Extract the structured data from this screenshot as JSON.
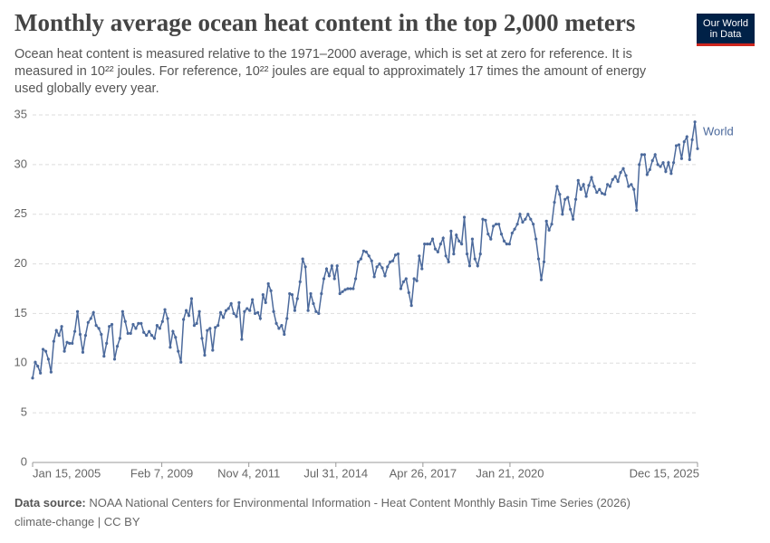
{
  "chart_data": {
    "type": "line",
    "title": "Monthly average ocean heat content in the top 2,000 meters",
    "subtitle": "Ocean heat content is measured relative to the 1971–2000 average, which is set at zero for reference. It is measured in 10²² joules. For reference, 10²² joules are equal to approximately 17 times the amount of energy used globally every year.",
    "logo": "Our World in Data",
    "source_label": "Data source:",
    "source": "NOAA National Centers for Environmental Information - Heat Content Monthly Basin Time Series (2026)",
    "footer": "climate-change | CC BY",
    "grid": true,
    "ylim": [
      0,
      35
    ],
    "yticks": [
      0,
      5,
      10,
      15,
      20,
      25,
      30,
      35
    ],
    "xlim": [
      "2005-01-15",
      "2025-12-15"
    ],
    "xticks": [
      {
        "value": "2005-01-15",
        "label": "Jan 15, 2005"
      },
      {
        "value": "2009-02-07",
        "label": "Feb 7, 2009"
      },
      {
        "value": "2011-11-04",
        "label": "Nov 4, 2011"
      },
      {
        "value": "2014-07-31",
        "label": "Jul 31, 2014"
      },
      {
        "value": "2017-04-26",
        "label": "Apr 26, 2017"
      },
      {
        "value": "2020-01-21",
        "label": "Jan 21, 2020"
      },
      {
        "value": "2025-12-15",
        "label": "Dec 15, 2025"
      }
    ],
    "x": [
      "2005-01-15",
      "2005-02-15",
      "2005-03-15",
      "2005-04-15",
      "2005-05-15",
      "2005-06-15",
      "2005-07-15",
      "2005-08-15",
      "2005-09-15",
      "2005-10-15",
      "2005-11-15",
      "2005-12-15",
      "2006-01-15",
      "2006-02-15",
      "2006-03-15",
      "2006-04-15",
      "2006-05-15",
      "2006-06-15",
      "2006-07-15",
      "2006-08-15",
      "2006-09-15",
      "2006-10-15",
      "2006-11-15",
      "2006-12-15",
      "2007-01-15",
      "2007-02-15",
      "2007-03-15",
      "2007-04-15",
      "2007-05-15",
      "2007-06-15",
      "2007-07-15",
      "2007-08-15",
      "2007-09-15",
      "2007-10-15",
      "2007-11-15",
      "2007-12-15",
      "2008-01-15",
      "2008-02-15",
      "2008-03-15",
      "2008-04-15",
      "2008-05-15",
      "2008-06-15",
      "2008-07-15",
      "2008-08-15",
      "2008-09-15",
      "2008-10-15",
      "2008-11-15",
      "2008-12-15",
      "2009-01-15",
      "2009-02-15",
      "2009-03-15",
      "2009-04-15",
      "2009-05-15",
      "2009-06-15",
      "2009-07-15",
      "2009-08-15",
      "2009-09-15",
      "2009-10-15",
      "2009-11-15",
      "2009-12-15",
      "2010-01-15",
      "2010-02-15",
      "2010-03-15",
      "2010-04-15",
      "2010-05-15",
      "2010-06-15",
      "2010-07-15",
      "2010-08-15",
      "2010-09-15",
      "2010-10-15",
      "2010-11-15",
      "2010-12-15",
      "2011-01-15",
      "2011-02-15",
      "2011-03-15",
      "2011-04-15",
      "2011-05-15",
      "2011-06-15",
      "2011-07-15",
      "2011-08-15",
      "2011-09-15",
      "2011-10-15",
      "2011-11-15",
      "2011-12-15",
      "2012-01-15",
      "2012-02-15",
      "2012-03-15",
      "2012-04-15",
      "2012-05-15",
      "2012-06-15",
      "2012-07-15",
      "2012-08-15",
      "2012-09-15",
      "2012-10-15",
      "2012-11-15",
      "2012-12-15",
      "2013-01-15",
      "2013-02-15",
      "2013-03-15",
      "2013-04-15",
      "2013-05-15",
      "2013-06-15",
      "2013-07-15",
      "2013-08-15",
      "2013-09-15",
      "2013-10-15",
      "2013-11-15",
      "2013-12-15",
      "2014-01-15",
      "2014-02-15",
      "2014-03-15",
      "2014-04-15",
      "2014-05-15",
      "2014-06-15",
      "2014-07-15",
      "2014-08-15",
      "2014-09-15",
      "2014-10-15",
      "2014-11-15",
      "2014-12-15",
      "2015-01-15",
      "2015-02-15",
      "2015-03-15",
      "2015-04-15",
      "2015-05-15",
      "2015-06-15",
      "2015-07-15",
      "2015-08-15",
      "2015-09-15",
      "2015-10-15",
      "2015-11-15",
      "2015-12-15",
      "2016-01-15",
      "2016-02-15",
      "2016-03-15",
      "2016-04-15",
      "2016-05-15",
      "2016-06-15",
      "2016-07-15",
      "2016-08-15",
      "2016-09-15",
      "2016-10-15",
      "2016-11-15",
      "2016-12-15",
      "2017-01-15",
      "2017-02-15",
      "2017-03-15",
      "2017-04-15",
      "2017-05-15",
      "2017-06-15",
      "2017-07-15",
      "2017-08-15",
      "2017-09-15",
      "2017-10-15",
      "2017-11-15",
      "2017-12-15",
      "2018-01-15",
      "2018-02-15",
      "2018-03-15",
      "2018-04-15",
      "2018-05-15",
      "2018-06-15",
      "2018-07-15",
      "2018-08-15",
      "2018-09-15",
      "2018-10-15",
      "2018-11-15",
      "2018-12-15",
      "2019-01-15",
      "2019-02-15",
      "2019-03-15",
      "2019-04-15",
      "2019-05-15",
      "2019-06-15",
      "2019-07-15",
      "2019-08-15",
      "2019-09-15",
      "2019-10-15",
      "2019-11-15",
      "2019-12-15",
      "2020-01-15",
      "2020-02-15",
      "2020-03-15",
      "2020-04-15",
      "2020-05-15",
      "2020-06-15",
      "2020-07-15",
      "2020-08-15",
      "2020-09-15",
      "2020-10-15",
      "2020-11-15",
      "2020-12-15",
      "2021-01-15",
      "2021-02-15",
      "2021-03-15",
      "2021-04-15",
      "2021-05-15",
      "2021-06-15",
      "2021-07-15",
      "2021-08-15",
      "2021-09-15",
      "2021-10-15",
      "2021-11-15",
      "2021-12-15",
      "2022-01-15",
      "2022-02-15",
      "2022-03-15",
      "2022-04-15",
      "2022-05-15",
      "2022-06-15",
      "2022-07-15",
      "2022-08-15",
      "2022-09-15",
      "2022-10-15",
      "2022-11-15",
      "2022-12-15",
      "2023-01-15",
      "2023-02-15",
      "2023-03-15",
      "2023-04-15",
      "2023-05-15",
      "2023-06-15",
      "2023-07-15",
      "2023-08-15",
      "2023-09-15",
      "2023-10-15",
      "2023-11-15",
      "2023-12-15",
      "2024-01-15",
      "2024-02-15",
      "2024-03-15",
      "2024-04-15",
      "2024-05-15",
      "2024-06-15",
      "2024-07-15",
      "2024-08-15",
      "2024-09-15",
      "2024-10-15",
      "2024-11-15",
      "2024-12-15",
      "2025-01-15",
      "2025-02-15",
      "2025-03-15",
      "2025-04-15",
      "2025-05-15",
      "2025-06-15",
      "2025-07-15",
      "2025-08-15",
      "2025-09-15",
      "2025-10-15",
      "2025-11-15",
      "2025-12-15"
    ],
    "series": [
      {
        "name": "World",
        "color": "#4c6a9c",
        "values": [
          8.5,
          10.1,
          9.7,
          9.0,
          11.4,
          11.2,
          10.4,
          9.1,
          12.2,
          13.3,
          12.8,
          13.7,
          11.2,
          12.1,
          12.0,
          12.0,
          13.2,
          15.2,
          12.9,
          11.1,
          12.8,
          14.1,
          14.5,
          15.1,
          13.8,
          13.5,
          12.9,
          10.7,
          12.0,
          13.7,
          13.9,
          10.4,
          11.7,
          12.5,
          15.2,
          14.2,
          13.0,
          13.0,
          13.9,
          13.5,
          14.0,
          14.0,
          13.1,
          12.8,
          13.2,
          12.8,
          12.5,
          13.8,
          13.5,
          14.2,
          15.4,
          14.5,
          11.6,
          13.2,
          12.6,
          11.2,
          10.1,
          14.4,
          15.3,
          14.8,
          16.5,
          13.8,
          14.0,
          15.2,
          12.5,
          10.8,
          13.3,
          13.5,
          11.3,
          13.6,
          13.8,
          15.1,
          14.6,
          15.3,
          15.5,
          16.0,
          15.0,
          14.7,
          16.1,
          12.4,
          15.2,
          15.5,
          15.3,
          16.4,
          15.0,
          15.1,
          14.5,
          16.9,
          16.1,
          18.0,
          17.3,
          15.2,
          14.0,
          13.5,
          13.8,
          12.9,
          14.5,
          17.0,
          16.9,
          15.3,
          16.5,
          18.2,
          20.5,
          19.7,
          15.3,
          17.0,
          16.0,
          15.2,
          15.0,
          17.0,
          18.5,
          19.5,
          18.8,
          19.8,
          18.5,
          19.8,
          17.0,
          17.2,
          17.4,
          17.5,
          17.5,
          17.5,
          18.5,
          20.2,
          20.5,
          21.3,
          21.2,
          20.8,
          20.3,
          18.7,
          19.7,
          20.0,
          19.6,
          18.8,
          19.7,
          20.2,
          20.3,
          20.9,
          21.0,
          17.5,
          18.2,
          18.5,
          17.1,
          15.8,
          18.5,
          18.3,
          20.8,
          19.5,
          22.0,
          22.0,
          22.0,
          22.5,
          21.5,
          21.2,
          22.0,
          22.6,
          20.8,
          20.2,
          23.3,
          21.0,
          22.9,
          22.3,
          22.0,
          24.7,
          21.0,
          19.8,
          22.5,
          20.5,
          19.8,
          21.0,
          24.5,
          24.4,
          23.0,
          22.5,
          23.8,
          24.0,
          24.0,
          23.0,
          22.3,
          22.0,
          22.0,
          23.1,
          23.5,
          24.0,
          25.0,
          24.2,
          24.5,
          25.0,
          24.5,
          24.0,
          22.5,
          20.5,
          18.4,
          20.2,
          24.3,
          23.4,
          24.0,
          26.2,
          27.8,
          27.0,
          25.0,
          26.5,
          26.7,
          25.5,
          24.5,
          26.5,
          28.4,
          27.5,
          28.0,
          26.8,
          27.9,
          28.7,
          27.8,
          27.2,
          27.5,
          27.1,
          27.0,
          28.0,
          27.8,
          28.5,
          28.8,
          28.3,
          29.2,
          29.6,
          28.9,
          27.8,
          28.0,
          27.5,
          25.4,
          30.0,
          31.0,
          31.0,
          29.0,
          29.5,
          30.4,
          31.0,
          30.0,
          29.8,
          30.2,
          29.3,
          30.2,
          29.1,
          30.2,
          31.9,
          32.0,
          30.6,
          32.3,
          32.8,
          30.5,
          32.5,
          34.3,
          31.6
        ]
      }
    ]
  }
}
